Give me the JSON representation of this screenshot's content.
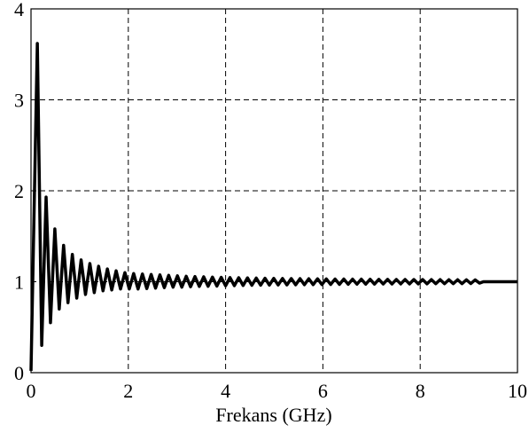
{
  "chart_data": {
    "type": "line",
    "x_label": "Frekans (GHz)",
    "xlim": [
      0,
      10
    ],
    "xticks": [
      0,
      2,
      4,
      6,
      8,
      10
    ],
    "ylim": [
      0,
      4
    ],
    "yticks": [
      0,
      1,
      2,
      3,
      4
    ],
    "grid": true,
    "x": [
      0,
      0.13,
      0.22,
      0.31,
      0.4,
      0.49,
      0.58,
      0.67,
      0.76,
      0.85,
      0.94,
      1.03,
      1.12,
      1.21,
      1.3,
      1.39,
      1.48,
      1.57,
      1.66,
      1.75,
      1.84,
      1.93,
      2.02,
      2.11,
      2.2,
      2.29,
      2.38,
      2.47,
      2.56,
      2.65,
      2.74,
      2.83,
      2.92,
      3.01,
      3.1,
      3.19,
      3.28,
      3.37,
      3.46,
      3.55,
      3.64,
      3.73,
      3.82,
      3.91,
      4,
      4.09,
      4.18,
      4.27,
      4.36,
      4.45,
      4.54,
      4.63,
      4.72,
      4.81,
      4.9,
      4.99,
      5.08,
      5.17,
      5.26,
      5.35,
      5.44,
      5.53,
      5.62,
      5.71,
      5.8,
      5.89,
      5.98,
      6.07,
      6.16,
      6.25,
      6.34,
      6.43,
      6.52,
      6.61,
      6.7,
      6.79,
      6.88,
      6.97,
      7.06,
      7.15,
      7.24,
      7.33,
      7.42,
      7.51,
      7.6,
      7.69,
      7.78,
      7.87,
      7.96,
      8.05,
      8.14,
      8.23,
      8.32,
      8.41,
      8.5,
      8.59,
      8.68,
      8.77,
      8.86,
      8.95,
      9.04,
      9.13,
      9.22,
      9.3,
      10
    ],
    "series": [
      {
        "color": "#000000",
        "values": [
          0.02,
          3.62,
          0.3,
          1.93,
          0.55,
          1.58,
          0.7,
          1.4,
          0.77,
          1.3,
          0.82,
          1.24,
          0.86,
          1.2,
          0.88,
          1.17,
          0.9,
          1.14,
          0.91,
          1.12,
          0.92,
          1.1,
          0.92,
          1.09,
          0.92,
          1.085,
          0.925,
          1.08,
          0.93,
          1.075,
          0.935,
          1.07,
          0.94,
          1.065,
          0.94,
          1.06,
          0.945,
          1.057,
          0.948,
          1.054,
          0.95,
          1.051,
          0.952,
          1.048,
          0.955,
          1.046,
          0.957,
          1.044,
          0.959,
          1.042,
          0.961,
          1.04,
          0.962,
          1.038,
          0.963,
          1.037,
          0.964,
          1.036,
          0.965,
          1.035,
          0.966,
          1.034,
          0.967,
          1.033,
          0.968,
          1.032,
          0.969,
          1.031,
          0.97,
          1.03,
          0.971,
          1.029,
          0.972,
          1.028,
          0.973,
          1.028,
          0.973,
          1.027,
          0.974,
          1.026,
          0.975,
          1.026,
          0.975,
          1.025,
          0.976,
          1.025,
          0.976,
          1.024,
          0.977,
          1.024,
          0.977,
          1.023,
          0.978,
          1.023,
          0.978,
          1.022,
          0.979,
          1.022,
          0.979,
          1.021,
          0.98,
          1.02,
          0.985,
          1,
          1
        ]
      }
    ]
  }
}
